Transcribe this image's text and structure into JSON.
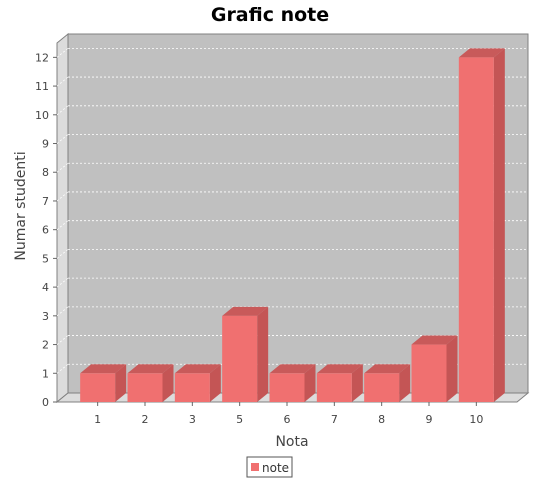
{
  "chart_data": {
    "type": "bar",
    "title": "Grafic note",
    "xlabel": "Nota",
    "ylabel": "Numar studenti",
    "categories": [
      "1",
      "2",
      "3",
      "5",
      "6",
      "7",
      "8",
      "9",
      "10"
    ],
    "series": [
      {
        "name": "note",
        "values": [
          1,
          1,
          1,
          3,
          1,
          1,
          1,
          2,
          12
        ]
      }
    ],
    "ylim": [
      0,
      12.5
    ],
    "yticks": [
      0,
      1,
      2,
      3,
      4,
      5,
      6,
      7,
      8,
      9,
      10,
      11,
      12
    ],
    "grid": true,
    "legend_position": "bottom",
    "colors": {
      "bar_front": "#f07070",
      "bar_top": "#c85a5a",
      "bar_side": "#c45555",
      "plot_background": "#c0c0c0",
      "gridline": "#ffffff",
      "floor": "#dcdcdc"
    }
  }
}
